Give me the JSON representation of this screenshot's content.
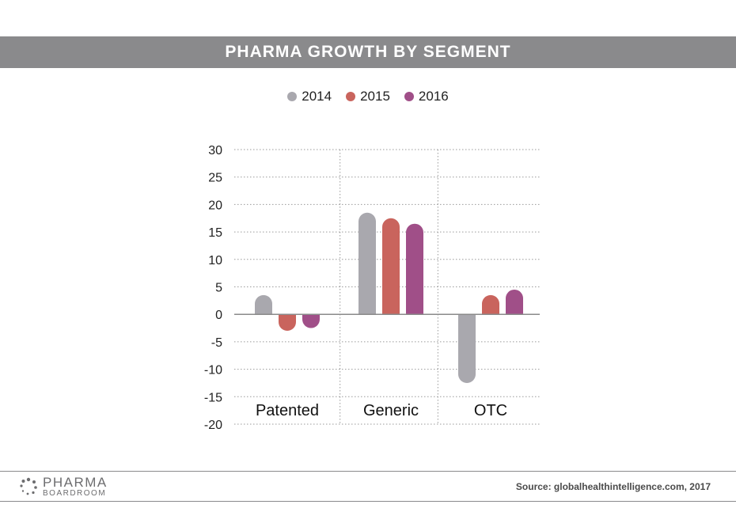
{
  "chart_data": {
    "type": "bar",
    "title": "PHARMA GROWTH BY SEGMENT",
    "categories": [
      "Patented",
      "Generic",
      "OTC"
    ],
    "series": [
      {
        "name": "2014",
        "color": "#a9a8ae",
        "values": [
          3.5,
          18.5,
          -12.5
        ]
      },
      {
        "name": "2015",
        "color": "#c9645d",
        "values": [
          -3.0,
          17.5,
          3.5
        ]
      },
      {
        "name": "2016",
        "color": "#a04f88",
        "values": [
          -2.5,
          16.5,
          4.5
        ]
      }
    ],
    "yticks": [
      "30",
      "25",
      "20",
      "15",
      "10",
      "5",
      "0",
      "-5",
      "-10",
      "-15",
      "-20"
    ],
    "ylim": [
      -20,
      30
    ],
    "grid": true,
    "legend_position": "top-center"
  },
  "footer": {
    "logo_main": "PHARMA",
    "logo_sub": "BOARDROOM",
    "source": "Source: globalhealthintelligence.com, 2017"
  }
}
